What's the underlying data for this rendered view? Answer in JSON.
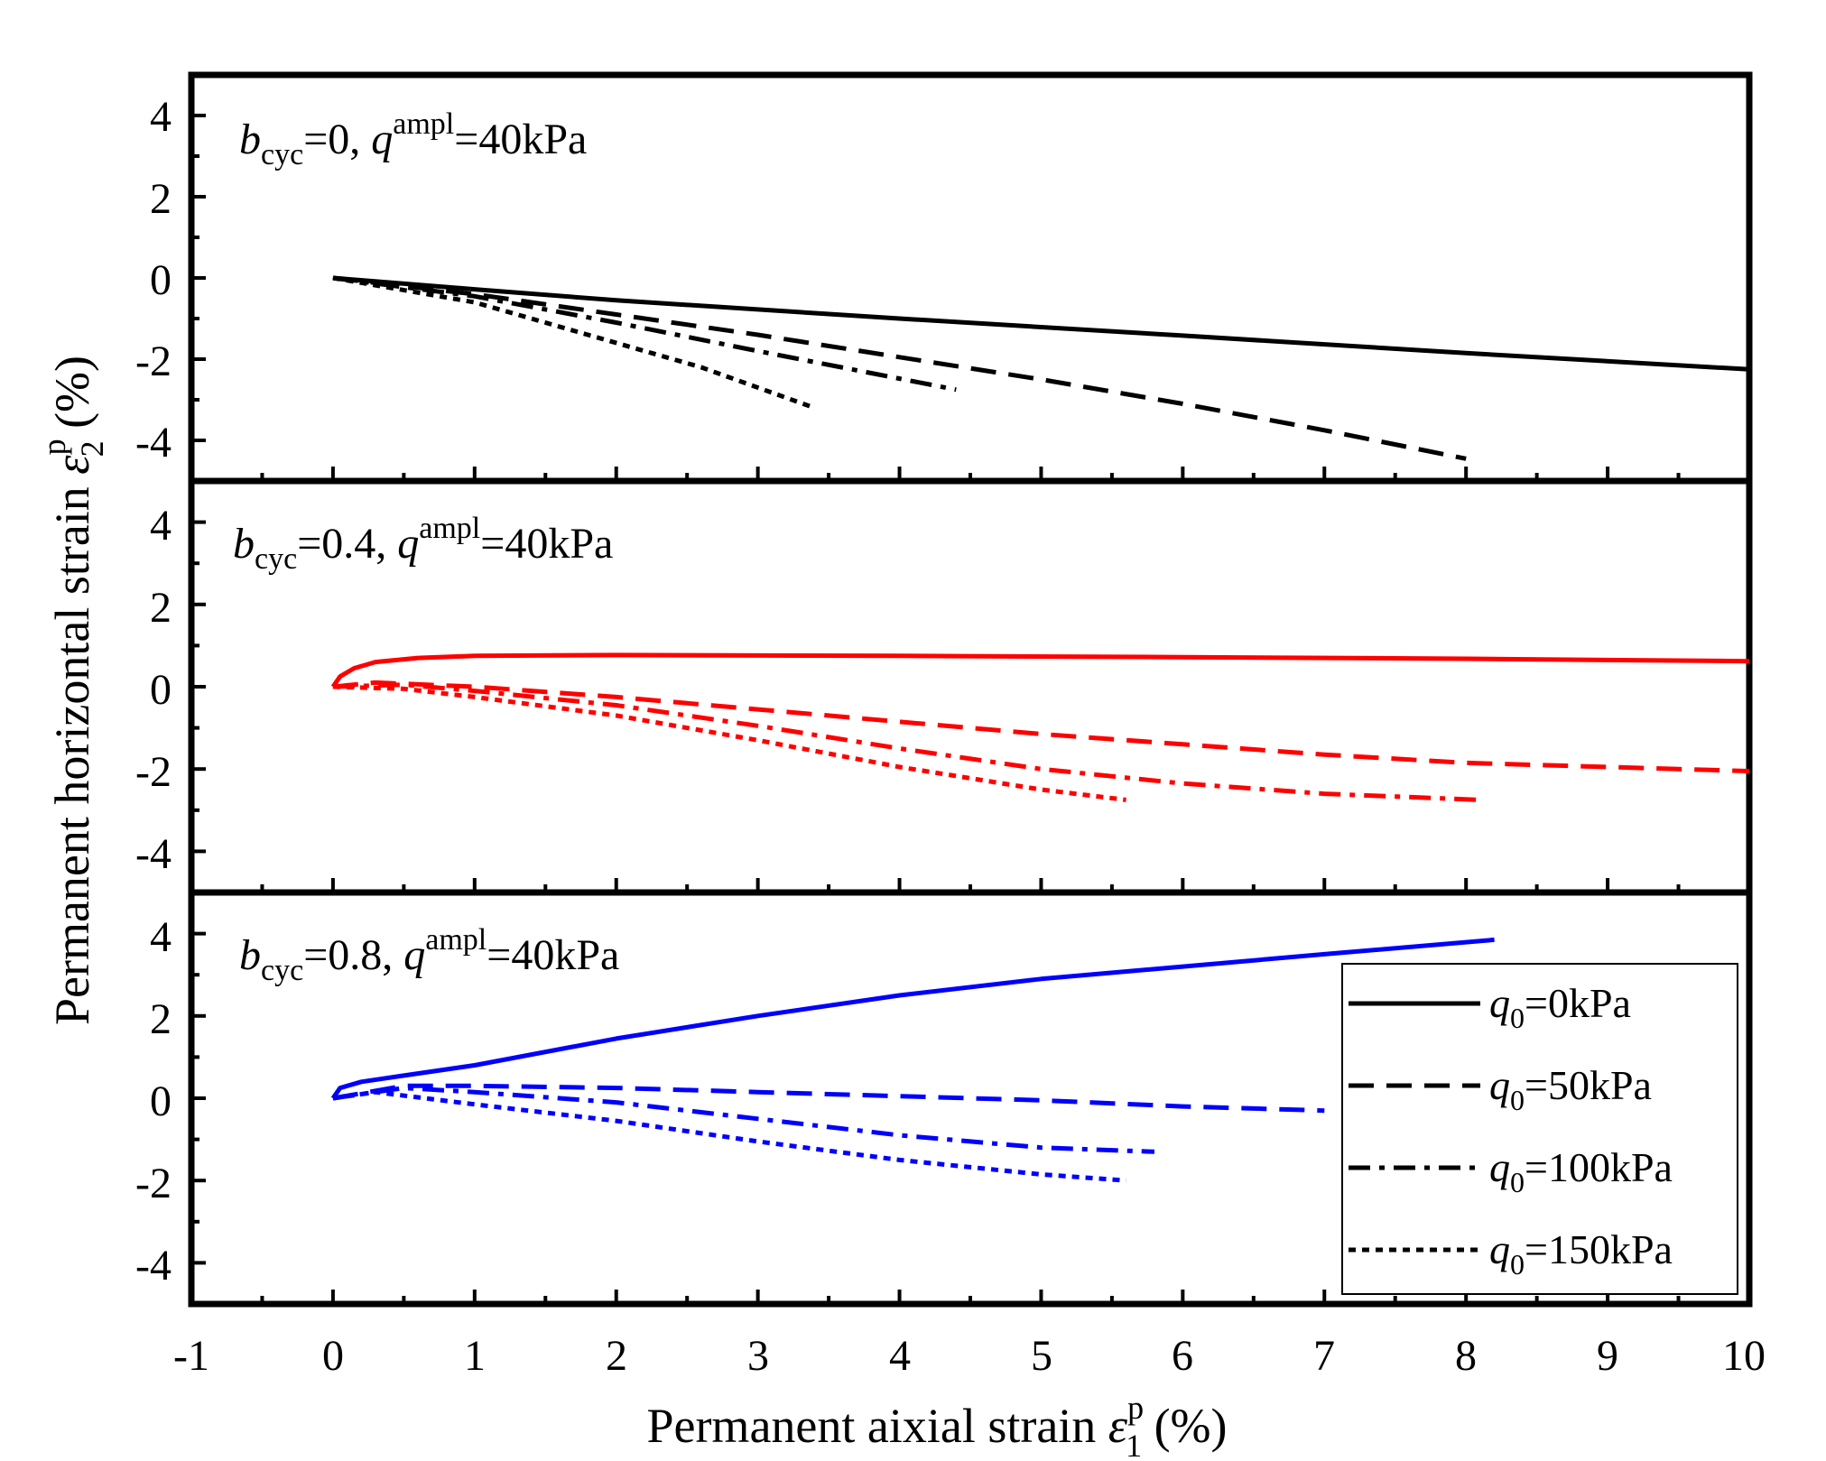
{
  "chart_data": [
    {
      "type": "line",
      "annotation": {
        "b": "b",
        "b_sub": "cyc",
        "b_val": "=0, ",
        "q": "q",
        "q_sup": "ampl",
        "q_val": "=40kPa"
      },
      "xlim": [
        -1,
        10
      ],
      "ylim": [
        -5,
        5
      ],
      "color": "#000000",
      "series": [
        {
          "name": "q0=0kPa",
          "style": "solid",
          "x": [
            0,
            1,
            2,
            4,
            6,
            8,
            10
          ],
          "y": [
            0,
            -0.28,
            -0.55,
            -1.0,
            -1.42,
            -1.85,
            -2.25
          ]
        },
        {
          "name": "q0=50kPa",
          "style": "dash",
          "x": [
            0,
            1,
            2,
            3,
            4,
            5,
            6,
            7,
            8
          ],
          "y": [
            0,
            -0.4,
            -0.9,
            -1.4,
            -1.95,
            -2.5,
            -3.1,
            -3.75,
            -4.45
          ]
        },
        {
          "name": "q0=100kPa",
          "style": "dashdot",
          "x": [
            0,
            1,
            2,
            3,
            4.4
          ],
          "y": [
            0,
            -0.45,
            -1.1,
            -1.8,
            -2.75
          ]
        },
        {
          "name": "q0=150kPa",
          "style": "dot",
          "x": [
            0,
            1,
            1.8,
            2.6,
            3.4
          ],
          "y": [
            0,
            -0.6,
            -1.4,
            -2.2,
            -3.2
          ]
        }
      ]
    },
    {
      "type": "line",
      "annotation": {
        "b": "b",
        "b_sub": "cyc",
        "b_val": "=0.4, ",
        "q": "q",
        "q_sup": "ampl",
        "q_val": "=40kPa"
      },
      "xlim": [
        -1,
        10
      ],
      "ylim": [
        -5,
        5
      ],
      "color": "#ff0000",
      "series": [
        {
          "name": "q0=0kPa",
          "style": "solid",
          "x": [
            0,
            0.05,
            0.15,
            0.3,
            0.6,
            1,
            2,
            4,
            6,
            8,
            10
          ],
          "y": [
            0,
            0.25,
            0.45,
            0.6,
            0.7,
            0.75,
            0.77,
            0.75,
            0.72,
            0.68,
            0.62
          ]
        },
        {
          "name": "q0=50kPa",
          "style": "dash",
          "x": [
            0,
            0.3,
            1,
            2,
            3,
            4,
            5,
            6,
            7,
            8,
            10
          ],
          "y": [
            0,
            0.1,
            0.0,
            -0.25,
            -0.55,
            -0.85,
            -1.15,
            -1.4,
            -1.65,
            -1.85,
            -2.05
          ]
        },
        {
          "name": "q0=100kPa",
          "style": "dashdot",
          "x": [
            0,
            0.5,
            1,
            2,
            3,
            4,
            5,
            6,
            7,
            8.1
          ],
          "y": [
            0,
            0.05,
            -0.1,
            -0.45,
            -0.95,
            -1.5,
            -2.0,
            -2.35,
            -2.6,
            -2.75
          ]
        },
        {
          "name": "q0=150kPa",
          "style": "dot",
          "x": [
            0,
            0.5,
            1,
            2,
            3,
            4,
            5,
            5.6
          ],
          "y": [
            0,
            -0.05,
            -0.25,
            -0.7,
            -1.3,
            -1.95,
            -2.5,
            -2.75
          ]
        }
      ]
    },
    {
      "type": "line",
      "annotation": {
        "b": "b",
        "b_sub": "cyc",
        "b_val": "=0.8, ",
        "q": "q",
        "q_sup": "ampl",
        "q_val": "=40kPa"
      },
      "xlim": [
        -1,
        10
      ],
      "ylim": [
        -5,
        5
      ],
      "color": "#0000ff",
      "series": [
        {
          "name": "q0=0kPa",
          "style": "solid",
          "x": [
            0,
            0.05,
            0.2,
            0.5,
            1,
            2,
            3,
            4,
            5,
            6,
            7,
            8.2
          ],
          "y": [
            0,
            0.25,
            0.4,
            0.55,
            0.8,
            1.45,
            2.0,
            2.5,
            2.9,
            3.2,
            3.5,
            3.85
          ]
        },
        {
          "name": "q0=50kPa",
          "style": "dash",
          "x": [
            0,
            0.5,
            1,
            2,
            3,
            4,
            5,
            6,
            7,
            7.0
          ],
          "y": [
            0,
            0.3,
            0.3,
            0.25,
            0.15,
            0.05,
            -0.05,
            -0.2,
            -0.3,
            -0.3
          ]
        },
        {
          "name": "q0=100kPa",
          "style": "dashdot",
          "x": [
            0,
            0.5,
            1,
            2,
            3,
            4,
            5,
            5.8
          ],
          "y": [
            0,
            0.25,
            0.15,
            -0.1,
            -0.5,
            -0.9,
            -1.2,
            -1.3
          ]
        },
        {
          "name": "q0=150kPa",
          "style": "dot",
          "x": [
            0,
            0.3,
            1,
            2,
            3,
            4,
            5,
            5.6
          ],
          "y": [
            0,
            0.15,
            -0.15,
            -0.55,
            -1.05,
            -1.5,
            -1.85,
            -2.0
          ]
        }
      ]
    }
  ],
  "axes": {
    "x_ticks": [
      "-1",
      "0",
      "1",
      "2",
      "3",
      "4",
      "5",
      "6",
      "7",
      "8",
      "9",
      "10"
    ],
    "y_ticks": [
      "4",
      "2",
      "0",
      "-2",
      "-4"
    ],
    "xlabel": {
      "text": "Permanent aixial strain ",
      "symbol": "ε",
      "sup": "p",
      "sub": "1",
      "unit": " (%)"
    },
    "ylabel": {
      "text": "Permanent horizontal strain ",
      "symbol": "ε",
      "sup": "p",
      "sub": "2",
      "unit": " (%)"
    }
  },
  "legend": {
    "position": "bottom-right of bottom panel",
    "items": [
      {
        "q": "q",
        "sub": "0",
        "text": "=0kPa",
        "style": "solid"
      },
      {
        "q": "q",
        "sub": "0",
        "text": "=50kPa",
        "style": "dash"
      },
      {
        "q": "q",
        "sub": "0",
        "text": "=100kPa",
        "style": "dashdot"
      },
      {
        "q": "q",
        "sub": "0",
        "text": "=150kPa",
        "style": "dot"
      }
    ]
  }
}
